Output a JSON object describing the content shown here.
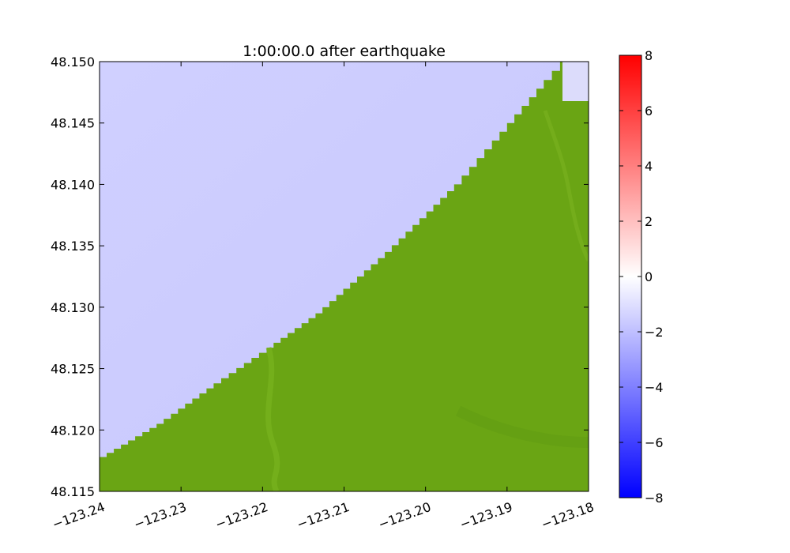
{
  "chart_data": {
    "type": "heatmap",
    "title": "1:00:00.0 after earthquake",
    "xlabel": "",
    "ylabel": "",
    "xlim": [
      -123.24,
      -123.18
    ],
    "ylim": [
      48.115,
      48.15
    ],
    "x_ticks": [
      -123.24,
      -123.23,
      -123.22,
      -123.21,
      -123.2,
      -123.19,
      -123.18
    ],
    "x_tick_labels": [
      "−123.24",
      "−123.23",
      "−123.22",
      "−123.21",
      "−123.20",
      "−123.19",
      "−123.18"
    ],
    "y_ticks": [
      48.115,
      48.12,
      48.125,
      48.13,
      48.135,
      48.14,
      48.145,
      48.15
    ],
    "y_tick_labels": [
      "48.115",
      "48.120",
      "48.125",
      "48.130",
      "48.135",
      "48.140",
      "48.145",
      "48.150"
    ],
    "grid": false,
    "water_color": "#cdcdff",
    "land_color": "#6aa514",
    "shoreline": [
      {
        "lon": -123.24,
        "lat": 48.1178
      },
      {
        "lon": -123.233,
        "lat": 48.1205
      },
      {
        "lon": -123.226,
        "lat": 48.1238
      },
      {
        "lon": -123.2195,
        "lat": 48.1267
      },
      {
        "lon": -123.2135,
        "lat": 48.1295
      },
      {
        "lon": -123.205,
        "lat": 48.1345
      },
      {
        "lon": -123.1965,
        "lat": 48.14
      },
      {
        "lon": -123.19,
        "lat": 48.145
      },
      {
        "lon": -123.1855,
        "lat": 48.1485
      },
      {
        "lon": -123.1835,
        "lat": 48.15
      }
    ],
    "colorbar": {
      "min": -8,
      "max": 8,
      "ticks": [
        -8,
        -6,
        -4,
        -2,
        0,
        2,
        4,
        6,
        8
      ],
      "tick_labels": [
        "−8",
        "−6",
        "−4",
        "−2",
        "0",
        "2",
        "4",
        "6",
        "8"
      ],
      "colors": [
        "#0000ff",
        "#ffffff",
        "#ff0000"
      ]
    }
  }
}
